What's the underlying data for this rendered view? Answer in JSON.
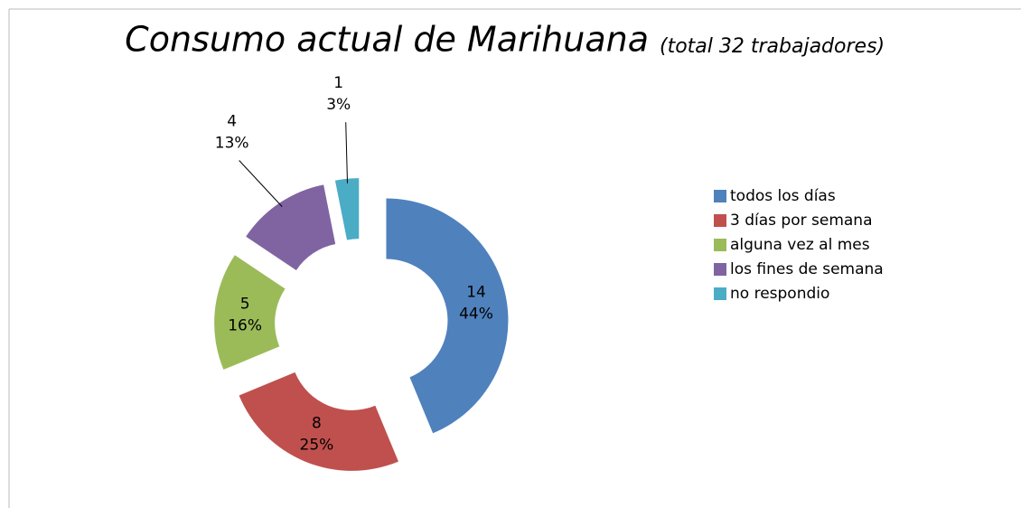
{
  "chart_data": {
    "type": "donut",
    "title": "Consumo actual de Marihuana",
    "subtitle": "(total 32 trabajadores)",
    "categories": [
      "todos los días",
      "3 días por semana",
      "alguna vez al mes",
      "los fines de semana",
      "no respondio"
    ],
    "values": [
      14,
      8,
      5,
      4,
      1
    ],
    "percent_labels": [
      "44%",
      "25%",
      "16%",
      "13%",
      "3%"
    ],
    "colors": [
      "#4f81bd",
      "#c0504d",
      "#9bbb59",
      "#8064a2",
      "#4bacc6"
    ],
    "legend": "right"
  }
}
